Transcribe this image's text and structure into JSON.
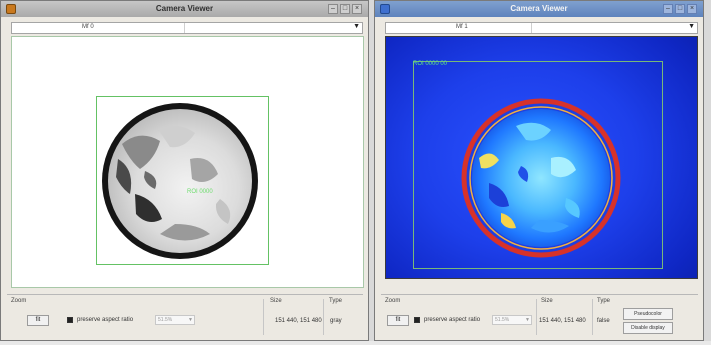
{
  "windows": [
    {
      "title": "Camera Viewer",
      "tab_label": "Mf 0",
      "roi_label": "ROI 0000",
      "controls": {
        "zoom_label": "Zoom",
        "zoom_button": "fit",
        "preserve_aspect_label": "preserve aspect ratio",
        "preserve_aspect_checked": true,
        "zoom_combo_value": "51.5%",
        "size_label": "Size",
        "size_value": "151 440, 151 480",
        "type_label": "Type",
        "type_value": "gray"
      }
    },
    {
      "title": "Camera Viewer",
      "tab_label": "Mf 1",
      "roi_label": "ROI 0000 00",
      "controls": {
        "zoom_label": "Zoom",
        "zoom_button": "fit",
        "preserve_aspect_label": "preserve aspect ratio",
        "preserve_aspect_checked": true,
        "zoom_combo_value": "51.5%",
        "size_label": "Size",
        "size_value": "151 440, 151 480",
        "type_label": "Type",
        "type_value": "false",
        "pseudocolor_button": "Pseudocolor",
        "disable_display_button": "Disable display"
      }
    }
  ],
  "icons": {
    "window_app": "camera-app-icon",
    "minimize": "minimize-icon",
    "maximize": "maximize-icon",
    "close": "close-icon",
    "dropdown": "chevron-down-icon"
  },
  "colors": {
    "roi_border": "#64c264",
    "pseudocolor_background": "#1d3fea",
    "ring": "#d7322a"
  }
}
